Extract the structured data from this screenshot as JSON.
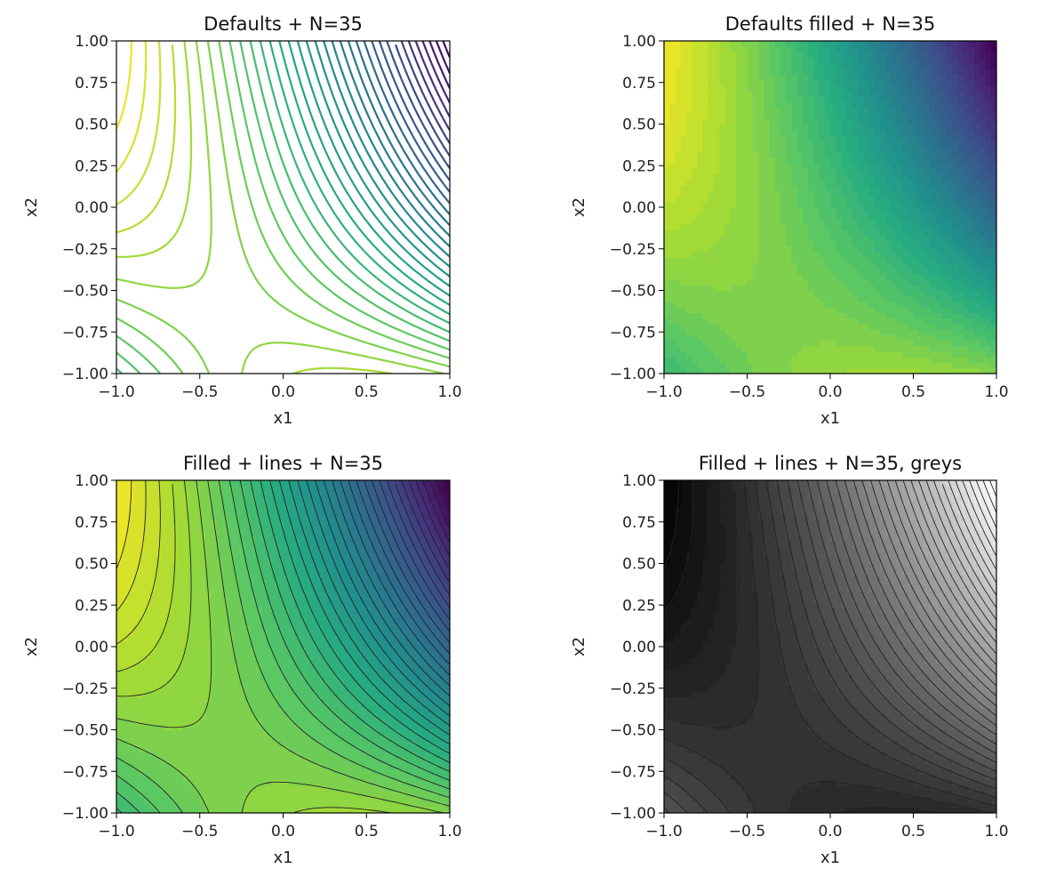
{
  "chart_data": [
    {
      "type": "contour",
      "title": "Defaults + N=35",
      "xlabel": "x1",
      "ylabel": "x2",
      "xlim": [
        -1.0,
        1.0
      ],
      "ylim": [
        -1.0,
        1.0
      ],
      "levels": 35,
      "filled": false,
      "lines": true,
      "colormap": "viridis",
      "xticks": [
        "-1.0",
        "-0.5",
        "0.0",
        "0.5",
        "1.0"
      ],
      "yticks": [
        "1.00",
        "0.75",
        "0.50",
        "0.25",
        "0.00",
        "-0.25",
        "-0.50",
        "-0.75",
        "-1.00"
      ]
    },
    {
      "type": "contour",
      "title": "Defaults filled + N=35",
      "xlabel": "x1",
      "ylabel": "x2",
      "xlim": [
        -1.0,
        1.0
      ],
      "ylim": [
        -1.0,
        1.0
      ],
      "levels": 35,
      "filled": true,
      "lines": false,
      "colormap": "viridis",
      "xticks": [
        "-1.0",
        "-0.5",
        "0.0",
        "0.5",
        "1.0"
      ],
      "yticks": [
        "1.00",
        "0.75",
        "0.50",
        "0.25",
        "0.00",
        "-0.25",
        "-0.50",
        "-0.75",
        "-1.00"
      ]
    },
    {
      "type": "contour",
      "title": "Filled + lines + N=35",
      "xlabel": "x1",
      "ylabel": "x2",
      "xlim": [
        -1.0,
        1.0
      ],
      "ylim": [
        -1.0,
        1.0
      ],
      "levels": 35,
      "filled": true,
      "lines": true,
      "colormap": "viridis",
      "xticks": [
        "-1.0",
        "-0.5",
        "0.0",
        "0.5",
        "1.0"
      ],
      "yticks": [
        "1.00",
        "0.75",
        "0.50",
        "0.25",
        "0.00",
        "-0.25",
        "-0.50",
        "-0.75",
        "-1.00"
      ]
    },
    {
      "type": "contour",
      "title": "Filled + lines + N=35, greys",
      "xlabel": "x1",
      "ylabel": "x2",
      "xlim": [
        -1.0,
        1.0
      ],
      "ylim": [
        -1.0,
        1.0
      ],
      "levels": 35,
      "filled": true,
      "lines": true,
      "colormap": "greys",
      "xticks": [
        "-1.0",
        "-0.5",
        "0.0",
        "0.5",
        "1.0"
      ],
      "yticks": [
        "1.00",
        "0.75",
        "0.50",
        "0.25",
        "0.00",
        "-0.25",
        "-0.50",
        "-0.75",
        "-1.00"
      ]
    }
  ]
}
